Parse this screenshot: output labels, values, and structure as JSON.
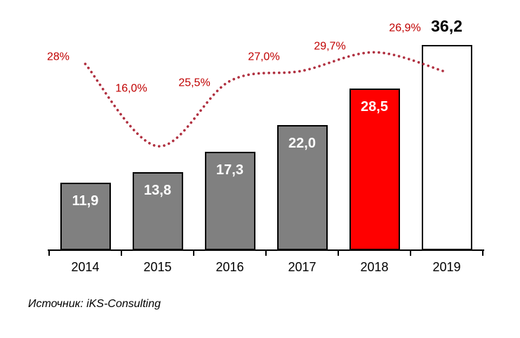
{
  "source_note": "Источник: iKS-Consulting",
  "colors": {
    "bar_gray": "#808080",
    "bar_red": "#FF0000",
    "bar_outline_fill": "#FFFFFF",
    "bar_border": "#000000",
    "trend_line": "#B03040",
    "percent_label": "#C00000",
    "value_label_inside": "#FFFFFF",
    "value_label_outside": "#000000",
    "axis": "#000000"
  },
  "chart_data": {
    "type": "bar",
    "categories": [
      "2014",
      "2015",
      "2016",
      "2017",
      "2018",
      "2019"
    ],
    "series": [
      {
        "name": "volume",
        "type": "bar",
        "values": [
          11.9,
          13.8,
          17.3,
          22.0,
          28.5,
          36.2
        ],
        "value_labels": [
          "11,9",
          "13,8",
          "17,3",
          "22,0",
          "28,5",
          "36,2"
        ],
        "bar_styles": [
          "gray",
          "gray",
          "gray",
          "gray",
          "red",
          "outline"
        ]
      },
      {
        "name": "growth-rate-percent",
        "type": "line",
        "line_style": "dotted",
        "values": [
          28,
          16,
          25.5,
          27.0,
          29.7,
          26.9
        ],
        "value_labels": [
          "28%",
          "16,0%",
          "25,5%",
          "27,0%",
          "29,7%",
          "26,9%"
        ]
      }
    ],
    "title": "",
    "xlabel": "",
    "ylabel": "",
    "ylim": [
      0,
      44
    ],
    "grid": false,
    "legend": "none"
  }
}
